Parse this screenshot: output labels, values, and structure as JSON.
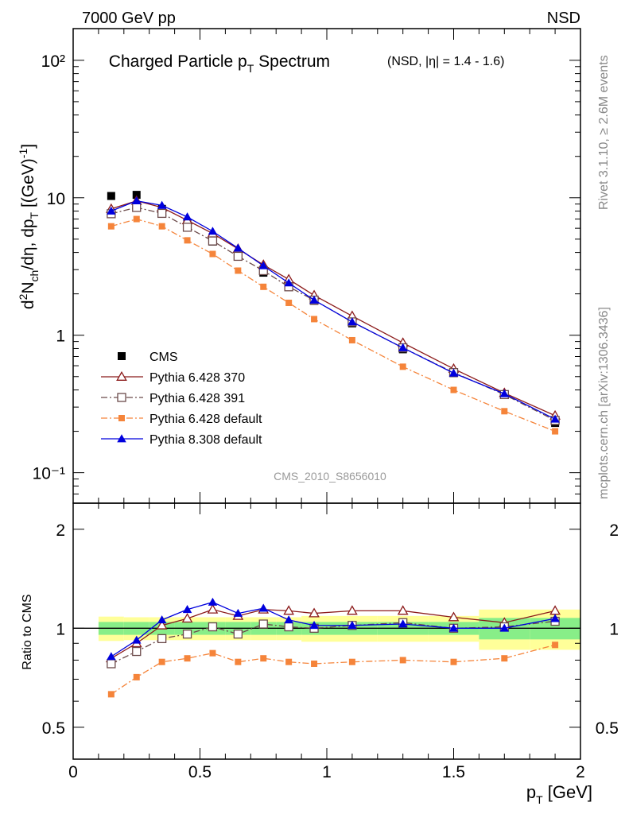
{
  "header": {
    "left": "7000 GeV pp",
    "right": "NSD"
  },
  "side_text": {
    "top": "Rivet 3.1.10, ≥ 2.6M events",
    "bottom": "mcplots.cern.ch [arXiv:1306.3436]"
  },
  "chart_data": [
    {
      "type": "line",
      "title_main": "Charged Particle p",
      "title_main_sub": "T",
      "title_main_tail": " Spectrum",
      "title_tag": "(NSD, |η| = 1.4 - 1.6)",
      "ylabel": "d²N_ch/dη, dp_T [(GeV)⁻¹]",
      "analysis_id": "CMS_2010_S8656010",
      "y_scale": "log",
      "ylim": [
        0.06,
        170
      ],
      "xlim": [
        0,
        2
      ],
      "y_tick_labels": [
        "10⁻¹",
        "1",
        "10",
        "10²"
      ],
      "x": [
        0.15,
        0.25,
        0.35,
        0.45,
        0.55,
        0.65,
        0.75,
        0.85,
        0.95,
        1.1,
        1.3,
        1.5,
        1.7,
        1.9
      ],
      "legend": [
        "CMS",
        "Pythia 6.428 370",
        "Pythia 6.428 391",
        "Pythia 6.428 default",
        "Pythia 8.308 default"
      ],
      "legend_position": "bottom-left",
      "series": [
        {
          "name": "CMS",
          "color": "#000000",
          "marker": "filled-square",
          "line": "none",
          "values": [
            10.3,
            10.5,
            8.3,
            6.4,
            4.8,
            3.9,
            2.85,
            2.25,
            1.78,
            1.22,
            0.79,
            0.53,
            0.37,
            0.23
          ]
        },
        {
          "name": "Pythia 6.428 370",
          "color": "#8b1a1a",
          "marker": "open-triangle",
          "line": "solid",
          "values": [
            8.3,
            9.5,
            8.5,
            6.85,
            5.5,
            4.25,
            3.25,
            2.55,
            1.95,
            1.38,
            0.88,
            0.57,
            0.38,
            0.26
          ]
        },
        {
          "name": "Pythia 6.428 391",
          "color": "#6b4a4a",
          "marker": "open-square",
          "line": "dashdot",
          "values": [
            7.65,
            8.5,
            7.7,
            6.1,
            4.85,
            3.75,
            2.95,
            2.25,
            1.8,
            1.25,
            0.81,
            0.535,
            0.37,
            0.24
          ]
        },
        {
          "name": "Pythia 6.428 default",
          "color": "#f5843a",
          "marker": "filled-square-small",
          "line": "dashdot",
          "values": [
            6.2,
            7.0,
            6.2,
            4.9,
            3.9,
            2.95,
            2.25,
            1.72,
            1.31,
            0.92,
            0.59,
            0.4,
            0.28,
            0.2
          ]
        },
        {
          "name": "Pythia 8.308 default",
          "color": "#0000dd",
          "marker": "filled-triangle",
          "line": "solid",
          "values": [
            8.0,
            9.5,
            8.8,
            7.25,
            5.7,
            4.3,
            3.2,
            2.4,
            1.8,
            1.25,
            0.81,
            0.53,
            0.375,
            0.245
          ]
        }
      ]
    },
    {
      "type": "line",
      "ylabel": "Ratio to CMS",
      "xlabel": "p_T [GeV]",
      "xlim": [
        0,
        2
      ],
      "ylim": [
        0.4,
        2.4
      ],
      "y_scale": "log",
      "x_tick_labels": [
        "0",
        "0.5",
        "1",
        "1.5",
        "2"
      ],
      "y_tick_labels": [
        "0.5",
        "1",
        "2"
      ],
      "reference_line": 1,
      "bands": {
        "x_edges": [
          0.1,
          0.2,
          0.3,
          0.4,
          0.5,
          0.6,
          0.7,
          0.8,
          0.9,
          1.0,
          1.2,
          1.4,
          1.6,
          1.8,
          2.0
        ],
        "yellow_half_width": [
          0.085,
          0.08,
          0.08,
          0.08,
          0.08,
          0.08,
          0.08,
          0.08,
          0.09,
          0.09,
          0.09,
          0.09,
          0.14,
          0.14
        ],
        "green_half_width": [
          0.045,
          0.045,
          0.045,
          0.045,
          0.045,
          0.045,
          0.045,
          0.045,
          0.045,
          0.045,
          0.045,
          0.045,
          0.075,
          0.075
        ]
      },
      "x": [
        0.15,
        0.25,
        0.35,
        0.45,
        0.55,
        0.65,
        0.75,
        0.85,
        0.95,
        1.1,
        1.3,
        1.5,
        1.7,
        1.9
      ],
      "series": [
        {
          "name": "Pythia 6.428 370",
          "color": "#8b1a1a",
          "marker": "open-triangle",
          "line": "solid",
          "values": [
            0.81,
            0.9,
            1.02,
            1.07,
            1.14,
            1.09,
            1.14,
            1.13,
            1.11,
            1.13,
            1.13,
            1.08,
            1.04,
            1.13
          ]
        },
        {
          "name": "Pythia 6.428 391",
          "color": "#6b4a4a",
          "marker": "open-square",
          "line": "dashdot",
          "values": [
            0.78,
            0.85,
            0.93,
            0.96,
            1.01,
            0.96,
            1.03,
            1.01,
            1.0,
            1.02,
            1.04,
            1.0,
            1.01,
            1.05
          ]
        },
        {
          "name": "Pythia 6.428 default",
          "color": "#f5843a",
          "marker": "filled-square-small",
          "line": "dashdot",
          "values": [
            0.63,
            0.71,
            0.79,
            0.81,
            0.84,
            0.79,
            0.81,
            0.79,
            0.78,
            0.79,
            0.8,
            0.79,
            0.81,
            0.89
          ]
        },
        {
          "name": "Pythia 8.308 default",
          "color": "#0000dd",
          "marker": "filled-triangle",
          "line": "solid",
          "values": [
            0.82,
            0.92,
            1.06,
            1.14,
            1.2,
            1.11,
            1.15,
            1.06,
            1.02,
            1.02,
            1.03,
            1.0,
            1.0,
            1.07
          ]
        }
      ]
    }
  ]
}
